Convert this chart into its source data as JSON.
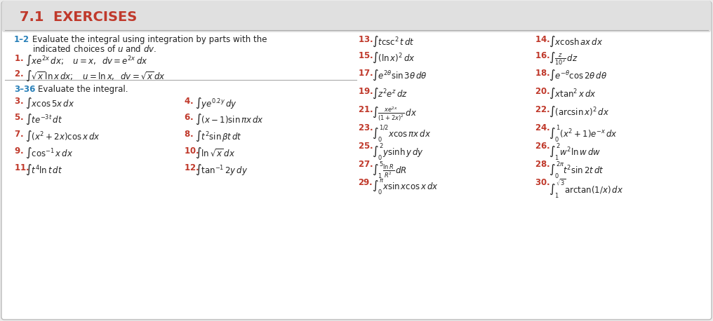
{
  "title": "7.1  EXERCISES",
  "bg": "#ebebeb",
  "box_bg": "#ffffff",
  "title_bar_bg": "#e0e0e0",
  "title_color": "#c0392b",
  "label_color": "#2980b9",
  "num_color": "#c0392b",
  "text_color": "#222222",
  "line_color": "#aaaaaa",
  "items_left_col0": [
    {
      "num": "3.",
      "formula": "$\\int x\\cos 5x\\,dx$"
    },
    {
      "num": "5.",
      "formula": "$\\int te^{-3t}\\,dt$"
    },
    {
      "num": "7.",
      "formula": "$\\int (x^2+2x)\\cos x\\,dx$"
    },
    {
      "num": "9.",
      "formula": "$\\int \\cos^{-1}x\\,dx$"
    },
    {
      "num": "11.",
      "formula": "$\\int t^4\\ln t\\,dt$"
    }
  ],
  "items_left_col1": [
    {
      "num": "4.",
      "formula": "$\\int ye^{0.2y}\\,dy$"
    },
    {
      "num": "6.",
      "formula": "$\\int (x-1)\\sin\\pi x\\,dx$"
    },
    {
      "num": "8.",
      "formula": "$\\int t^2\\sin\\beta t\\,dt$"
    },
    {
      "num": "10.",
      "formula": "$\\int \\ln\\sqrt{x}\\,dx$"
    },
    {
      "num": "12.",
      "formula": "$\\int \\tan^{-1}2y\\,dy$"
    }
  ],
  "items_right_col0_top": [
    {
      "num": "13.",
      "formula": "$\\int t\\csc^2 t\\,dt$"
    },
    {
      "num": "15.",
      "formula": "$\\int (\\ln x)^2\\,dx$"
    },
    {
      "num": "17.",
      "formula": "$\\int e^{2\\theta}\\sin 3\\theta\\,d\\theta$"
    },
    {
      "num": "19.",
      "formula": "$\\int z^2e^z\\,dz$"
    },
    {
      "num": "21.",
      "formula": "$\\int \\frac{xe^{2x}}{(1+2x)^2}\\,dx$"
    },
    {
      "num": "23.",
      "formula": "$\\int_0^{1/2} x\\cos\\pi x\\,dx$"
    },
    {
      "num": "25.",
      "formula": "$\\int_0^{2} y\\sinh y\\,dy$"
    },
    {
      "num": "27.",
      "formula": "$\\int_1^{5}\\frac{\\ln R}{R^2}\\,dR$"
    },
    {
      "num": "29.",
      "formula": "$\\int_0^{\\pi} x\\sin x\\cos x\\,dx$"
    }
  ],
  "items_right_col1_top": [
    {
      "num": "14.",
      "formula": "$\\int x\\cosh ax\\,dx$"
    },
    {
      "num": "16.",
      "formula": "$\\int \\frac{z}{10^z}\\,dz$"
    },
    {
      "num": "18.",
      "formula": "$\\int e^{-\\theta}\\cos 2\\theta\\,d\\theta$"
    },
    {
      "num": "20.",
      "formula": "$\\int x\\tan^2 x\\,dx$"
    },
    {
      "num": "22.",
      "formula": "$\\int (\\arcsin x)^2\\,dx$"
    },
    {
      "num": "24.",
      "formula": "$\\int_0^{1}(x^2+1)e^{-x}\\,dx$"
    },
    {
      "num": "26.",
      "formula": "$\\int_1^{2} w^2\\ln w\\,dw$"
    },
    {
      "num": "28.",
      "formula": "$\\int_0^{2\\pi} t^2\\sin 2t\\,dt$"
    },
    {
      "num": "30.",
      "formula": "$\\int_1^{\\sqrt{3}} \\arctan(1/x)\\,dx$"
    }
  ]
}
